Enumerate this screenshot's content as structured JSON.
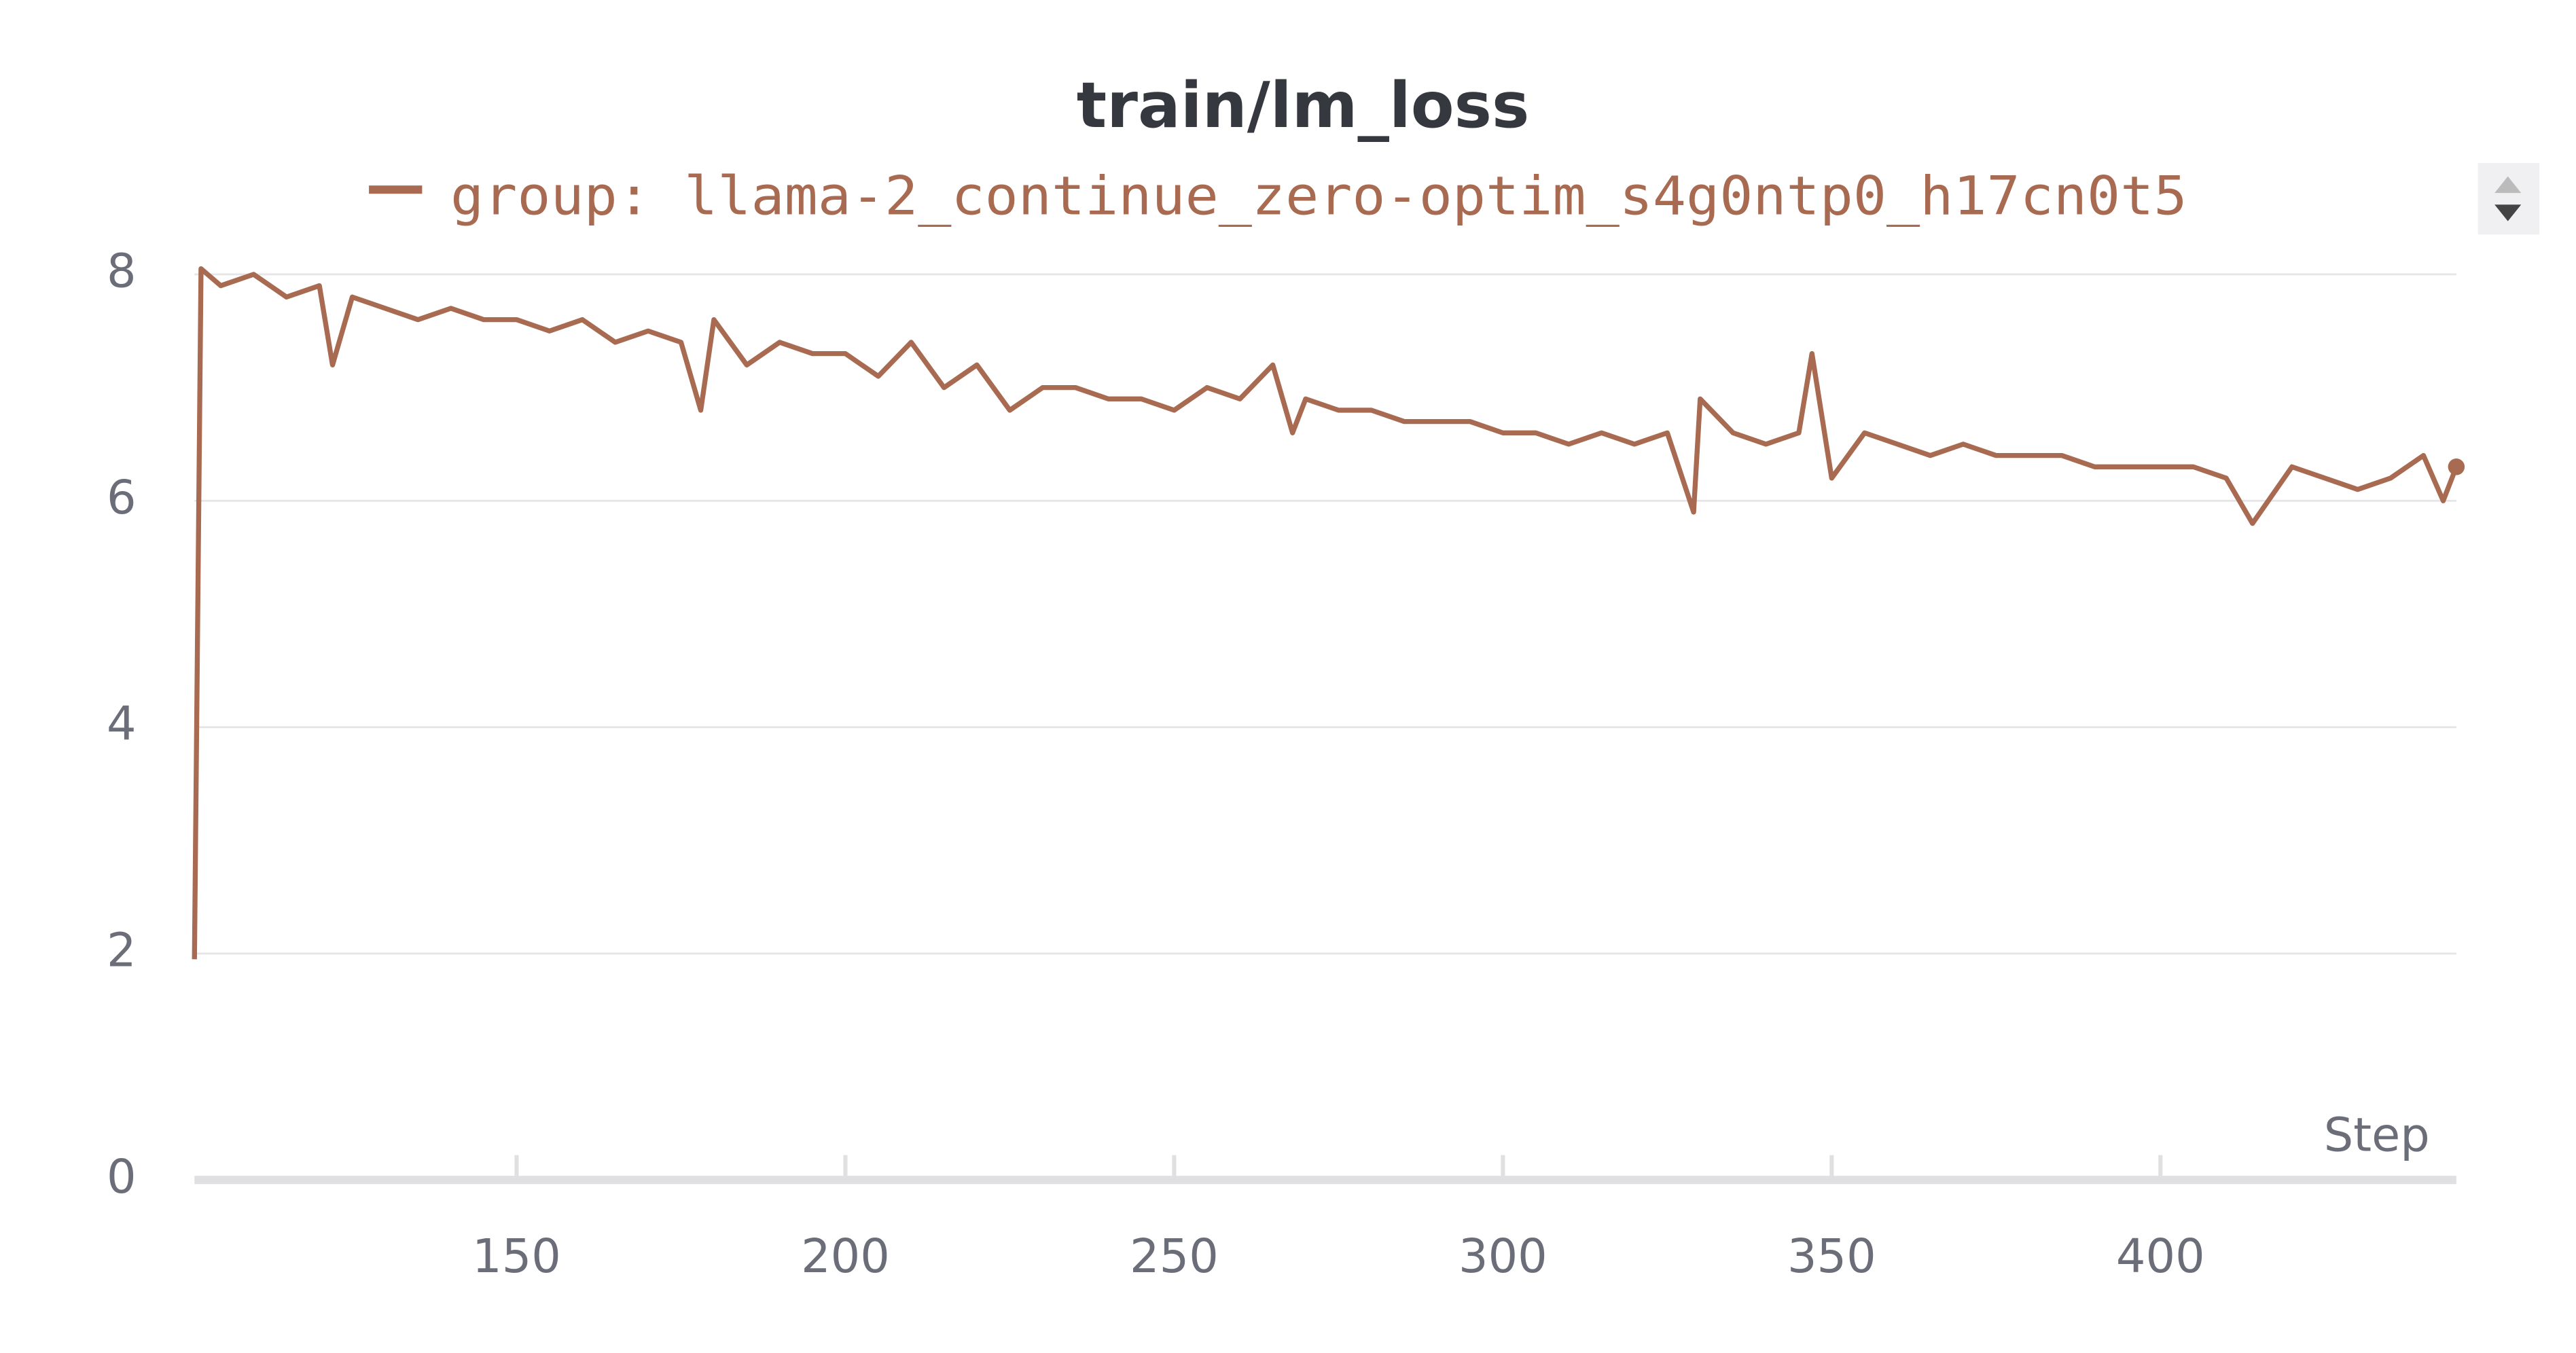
{
  "chart_data": {
    "type": "line",
    "title": "train/lm_loss",
    "x_label": "Step",
    "x": [
      101,
      102,
      105,
      110,
      115,
      120,
      122,
      125,
      130,
      135,
      140,
      145,
      150,
      155,
      160,
      165,
      170,
      175,
      178,
      180,
      185,
      190,
      195,
      200,
      205,
      210,
      215,
      220,
      225,
      230,
      235,
      240,
      245,
      250,
      255,
      260,
      265,
      268,
      270,
      275,
      280,
      285,
      290,
      295,
      300,
      305,
      310,
      315,
      320,
      325,
      329,
      330,
      335,
      340,
      345,
      347,
      350,
      355,
      360,
      365,
      370,
      375,
      380,
      385,
      390,
      395,
      400,
      405,
      410,
      414,
      420,
      425,
      430,
      435,
      440,
      443,
      445
    ],
    "series": [
      {
        "name": "group: llama-2_continue_zero-optim_s4g0ntp0_h17cn0t5",
        "color": "#a86a50",
        "values": [
          1.95,
          8.05,
          7.9,
          8.0,
          7.8,
          7.9,
          7.2,
          7.8,
          7.7,
          7.6,
          7.7,
          7.6,
          7.6,
          7.5,
          7.6,
          7.4,
          7.5,
          7.4,
          6.8,
          7.6,
          7.2,
          7.4,
          7.3,
          7.3,
          7.1,
          7.4,
          7.0,
          7.2,
          6.8,
          7.0,
          7.0,
          6.9,
          6.9,
          6.8,
          7.0,
          6.9,
          7.2,
          6.6,
          6.9,
          6.8,
          6.8,
          6.7,
          6.7,
          6.7,
          6.6,
          6.6,
          6.5,
          6.6,
          6.5,
          6.6,
          5.9,
          6.9,
          6.6,
          6.5,
          6.6,
          7.3,
          6.2,
          6.6,
          6.5,
          6.4,
          6.5,
          6.4,
          6.4,
          6.4,
          6.3,
          6.3,
          6.3,
          6.3,
          6.2,
          5.8,
          6.3,
          6.2,
          6.1,
          6.2,
          6.4,
          6.0,
          6.3
        ]
      }
    ],
    "xlim": [
      101,
      445
    ],
    "xticks": [
      150,
      200,
      250,
      300,
      350,
      400
    ],
    "ylim": [
      0,
      8
    ],
    "yticks": [
      0,
      2,
      4,
      6,
      8
    ],
    "grid": true
  }
}
